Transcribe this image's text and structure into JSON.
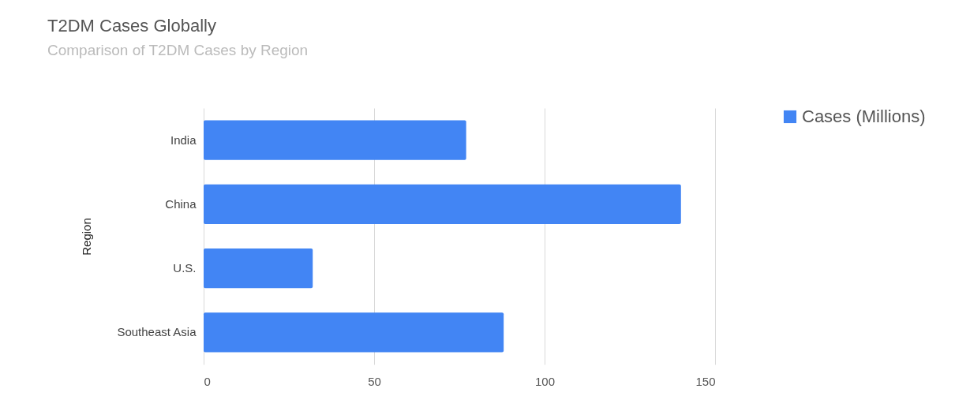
{
  "chart_data": {
    "type": "bar",
    "orientation": "horizontal",
    "title": "T2DM Cases Globally",
    "subtitle": "Comparison of T2DM Cases by Region",
    "ylabel": "Region",
    "categories": [
      "India",
      "China",
      "U.S.",
      "Southeast Asia"
    ],
    "series": [
      {
        "name": "Cases (Millions)",
        "color": "#4285f4",
        "values": [
          77,
          140,
          32,
          88
        ]
      }
    ],
    "xlim": [
      0,
      150
    ],
    "xticks": [
      0,
      50,
      100,
      150
    ],
    "grid": "x",
    "legend": "right"
  }
}
